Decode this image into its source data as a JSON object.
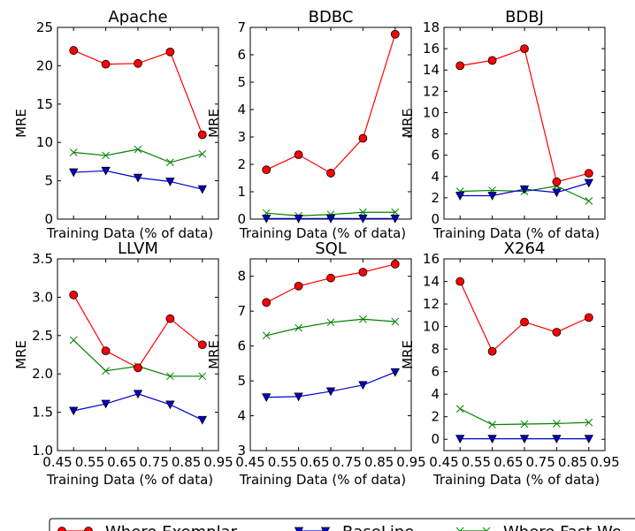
{
  "chart_data": [
    {
      "type": "line",
      "title": "Apache",
      "xlabel": "Training Data (% of data)",
      "ylabel": "MRE",
      "xlim": [
        0.45,
        0.95
      ],
      "ylim": [
        0,
        25
      ],
      "yticks": [
        0,
        5,
        10,
        15,
        20,
        25
      ],
      "xticks": [],
      "x": [
        0.5,
        0.6,
        0.7,
        0.8,
        0.9
      ],
      "series": [
        {
          "key": "exemplar",
          "values": [
            22.0,
            20.2,
            20.3,
            21.8,
            11.0
          ]
        },
        {
          "key": "baseline",
          "values": [
            6.1,
            6.3,
            5.4,
            4.9,
            3.9
          ]
        },
        {
          "key": "fast",
          "values": [
            8.7,
            8.3,
            9.1,
            7.4,
            8.5
          ]
        }
      ]
    },
    {
      "type": "line",
      "title": "BDBC",
      "xlabel": "Training Data (% of data)",
      "ylabel": "MRE",
      "xlim": [
        0.45,
        0.95
      ],
      "ylim": [
        0,
        7
      ],
      "yticks": [
        0,
        1,
        2,
        3,
        4,
        5,
        6,
        7
      ],
      "xticks": [],
      "x": [
        0.5,
        0.6,
        0.7,
        0.8,
        0.9
      ],
      "series": [
        {
          "key": "exemplar",
          "values": [
            1.8,
            2.35,
            1.68,
            2.95,
            6.75
          ]
        },
        {
          "key": "baseline",
          "values": [
            0.02,
            0.02,
            0.02,
            0.02,
            0.02
          ]
        },
        {
          "key": "fast",
          "values": [
            0.22,
            0.12,
            0.17,
            0.25,
            0.25
          ]
        }
      ]
    },
    {
      "type": "line",
      "title": "BDBJ",
      "xlabel": "Training Data (% of data)",
      "ylabel": "MRE",
      "xlim": [
        0.45,
        0.95
      ],
      "ylim": [
        0,
        18
      ],
      "yticks": [
        0,
        2,
        4,
        6,
        8,
        10,
        12,
        14,
        16,
        18
      ],
      "xticks": [],
      "x": [
        0.5,
        0.6,
        0.7,
        0.8,
        0.9
      ],
      "series": [
        {
          "key": "exemplar",
          "values": [
            14.4,
            14.9,
            16.0,
            3.5,
            4.3
          ]
        },
        {
          "key": "baseline",
          "values": [
            2.2,
            2.2,
            2.8,
            2.5,
            3.4
          ]
        },
        {
          "key": "fast",
          "values": [
            2.6,
            2.7,
            2.6,
            3.1,
            1.7
          ]
        }
      ]
    },
    {
      "type": "line",
      "title": "LLVM",
      "xlabel": "Training Data (% of data)",
      "ylabel": "MRE",
      "xlim": [
        0.45,
        0.95
      ],
      "ylim": [
        1.0,
        3.5
      ],
      "yticks": [
        1.0,
        1.5,
        2.0,
        2.5,
        3.0,
        3.5
      ],
      "yfmt": 1,
      "xticks": [
        0.45,
        0.55,
        0.65,
        0.75,
        0.85,
        0.95
      ],
      "x": [
        0.5,
        0.6,
        0.7,
        0.8,
        0.9
      ],
      "series": [
        {
          "key": "exemplar",
          "values": [
            3.03,
            2.3,
            2.08,
            2.72,
            2.38
          ]
        },
        {
          "key": "baseline",
          "values": [
            1.52,
            1.61,
            1.74,
            1.6,
            1.4
          ]
        },
        {
          "key": "fast",
          "values": [
            2.44,
            2.04,
            2.1,
            1.97,
            1.97
          ]
        }
      ]
    },
    {
      "type": "line",
      "title": "SQL",
      "xlabel": "Training Data (% of data)",
      "ylabel": "MRE",
      "xlim": [
        0.45,
        0.95
      ],
      "ylim": [
        3,
        8.5
      ],
      "yticks": [
        3,
        4,
        5,
        6,
        7,
        8
      ],
      "xticks": [
        0.45,
        0.55,
        0.65,
        0.75,
        0.85,
        0.95
      ],
      "x": [
        0.5,
        0.6,
        0.7,
        0.8,
        0.9
      ],
      "series": [
        {
          "key": "exemplar",
          "values": [
            7.25,
            7.72,
            7.95,
            8.12,
            8.35
          ]
        },
        {
          "key": "baseline",
          "values": [
            4.53,
            4.55,
            4.7,
            4.88,
            5.25
          ]
        },
        {
          "key": "fast",
          "values": [
            6.3,
            6.52,
            6.68,
            6.77,
            6.7
          ]
        }
      ]
    },
    {
      "type": "line",
      "title": "X264",
      "xlabel": "Training Data (% of data)",
      "ylabel": "MRE",
      "xlim": [
        0.45,
        0.95
      ],
      "ylim": [
        -1,
        16
      ],
      "yticks": [
        0,
        2,
        4,
        6,
        8,
        10,
        12,
        14,
        16
      ],
      "xticks": [
        0.45,
        0.55,
        0.65,
        0.75,
        0.85,
        0.95
      ],
      "x": [
        0.5,
        0.6,
        0.7,
        0.8,
        0.9
      ],
      "series": [
        {
          "key": "exemplar",
          "values": [
            14.0,
            7.8,
            10.4,
            9.5,
            10.8
          ]
        },
        {
          "key": "baseline",
          "values": [
            0.05,
            0.05,
            0.05,
            0.05,
            0.05
          ]
        },
        {
          "key": "fast",
          "values": [
            2.7,
            1.3,
            1.35,
            1.4,
            1.5
          ]
        }
      ]
    }
  ],
  "legend": {
    "placement": "bottom",
    "items": [
      {
        "key": "exemplar",
        "label": "Where Exemplar"
      },
      {
        "key": "baseline",
        "label": "BaseLine"
      },
      {
        "key": "fast",
        "label": "Where Fast We"
      }
    ]
  },
  "colors": {
    "exemplar": "#ff0000",
    "baseline": "#0000cc",
    "fast": "#008000"
  }
}
